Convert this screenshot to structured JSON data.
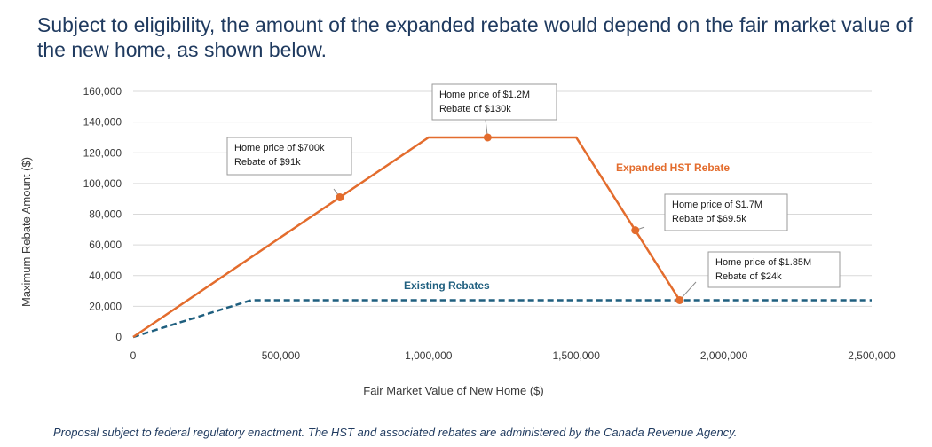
{
  "headline": "Subject to eligibility, the amount of the expanded rebate would depend on the fair market value of the new home, as shown below.",
  "footnote": "Proposal subject to federal regulatory enactment. The HST and associated rebates are administered by the Canada Revenue Agency.",
  "colors": {
    "expanded": "#e36c2d",
    "existing": "#1f5f7f",
    "grid": "#d9d9d9",
    "callout_border": "#9a9a9a"
  },
  "chart_data": {
    "type": "line",
    "title": "",
    "xlabel": "Fair Market Value of New Home ($)",
    "ylabel": "Maximum Rebate Amount ($)",
    "xlim": [
      0,
      2500000
    ],
    "ylim": [
      0,
      160000
    ],
    "x_ticks": [
      0,
      500000,
      1000000,
      1500000,
      2000000,
      2500000
    ],
    "x_tick_labels": [
      "0",
      "500,000",
      "1,000,000",
      "1,500,000",
      "2,000,000",
      "2,500,000"
    ],
    "y_ticks": [
      0,
      20000,
      40000,
      60000,
      80000,
      100000,
      120000,
      140000,
      160000
    ],
    "y_tick_labels": [
      "0",
      "20,000",
      "40,000",
      "60,000",
      "80,000",
      "100,000",
      "120,000",
      "140,000",
      "160,000"
    ],
    "grid": true,
    "series": [
      {
        "name": "Expanded HST Rebate",
        "label": "Expanded HST Rebate",
        "style": "solid",
        "x": [
          0,
          1000000,
          1500000,
          1850000
        ],
        "y": [
          0,
          130000,
          130000,
          24000
        ]
      },
      {
        "name": "Existing Rebates",
        "label": "Existing Rebates",
        "style": "dashed",
        "x": [
          0,
          400000,
          2500000
        ],
        "y": [
          0,
          24000,
          24000
        ]
      }
    ],
    "annotations": [
      {
        "x": 700000,
        "y": 91000,
        "lines": [
          "Home price of $700k",
          "Rebate of $91k"
        ]
      },
      {
        "x": 1200000,
        "y": 130000,
        "lines": [
          "Home price of $1.2M",
          "Rebate of $130k"
        ]
      },
      {
        "x": 1700000,
        "y": 69500,
        "lines": [
          "Home price of $1.7M",
          "Rebate of $69.5k"
        ]
      },
      {
        "x": 1850000,
        "y": 24000,
        "lines": [
          "Home price of $1.85M",
          "Rebate of $24k"
        ]
      }
    ]
  }
}
